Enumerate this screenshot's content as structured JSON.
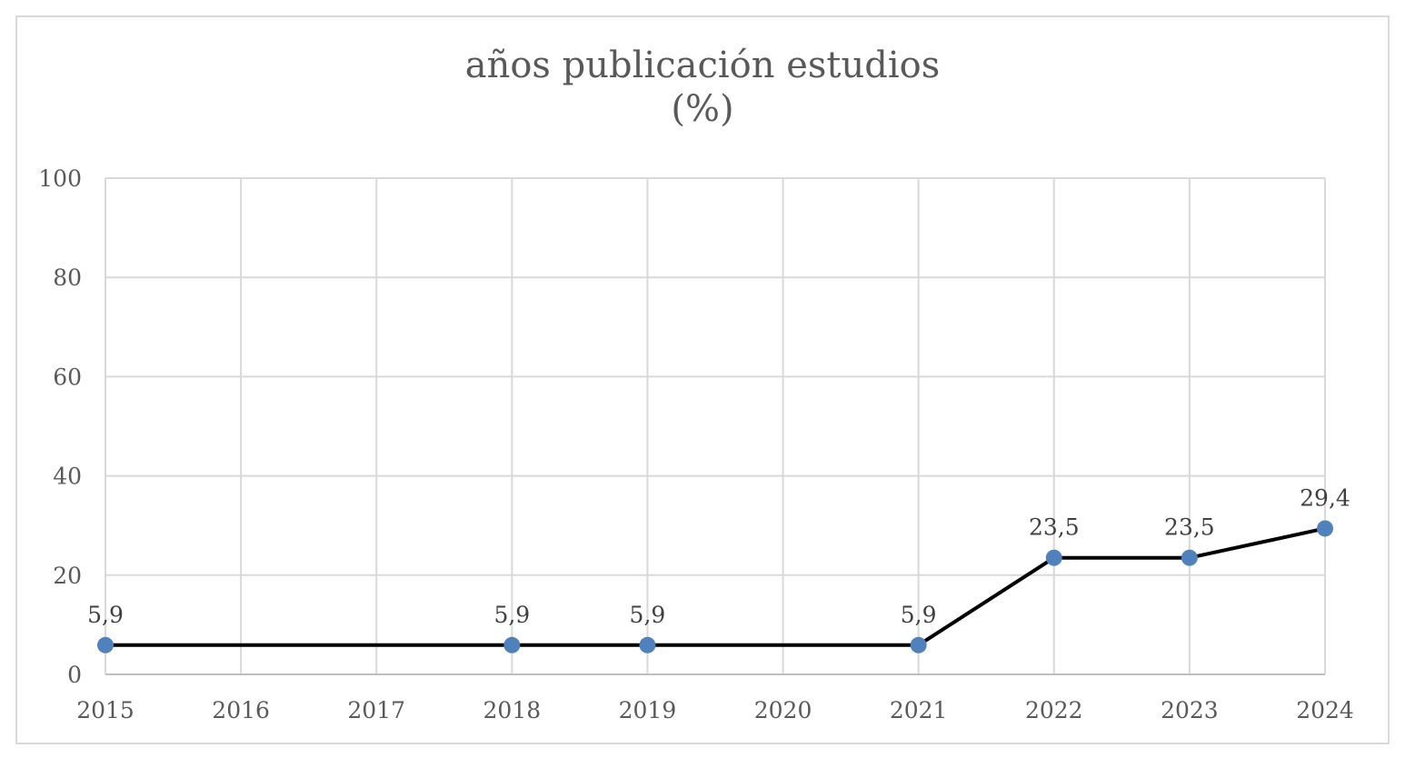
{
  "chart_data": {
    "type": "line",
    "title_lines": [
      "años publicación estudios",
      "(%)"
    ],
    "xlabel": "",
    "ylabel": "",
    "x": [
      2015,
      2016,
      2017,
      2018,
      2019,
      2020,
      2021,
      2022,
      2023,
      2024
    ],
    "points": [
      {
        "x": 2015,
        "y": 5.9,
        "label": "5,9"
      },
      {
        "x": 2018,
        "y": 5.9,
        "label": "5,9"
      },
      {
        "x": 2019,
        "y": 5.9,
        "label": "5,9"
      },
      {
        "x": 2021,
        "y": 5.9,
        "label": "5,9"
      },
      {
        "x": 2022,
        "y": 23.5,
        "label": "23,5"
      },
      {
        "x": 2023,
        "y": 23.5,
        "label": "23,5"
      },
      {
        "x": 2024,
        "y": 29.4,
        "label": "29,4"
      }
    ],
    "ylim": [
      0,
      100
    ],
    "yticks": [
      0,
      20,
      40,
      60,
      80,
      100
    ],
    "grid": true,
    "legend": "none",
    "colors": {
      "line": "#000000",
      "marker": "#4f81bd",
      "grid": "#d9d9d9",
      "text": "#595959"
    }
  }
}
